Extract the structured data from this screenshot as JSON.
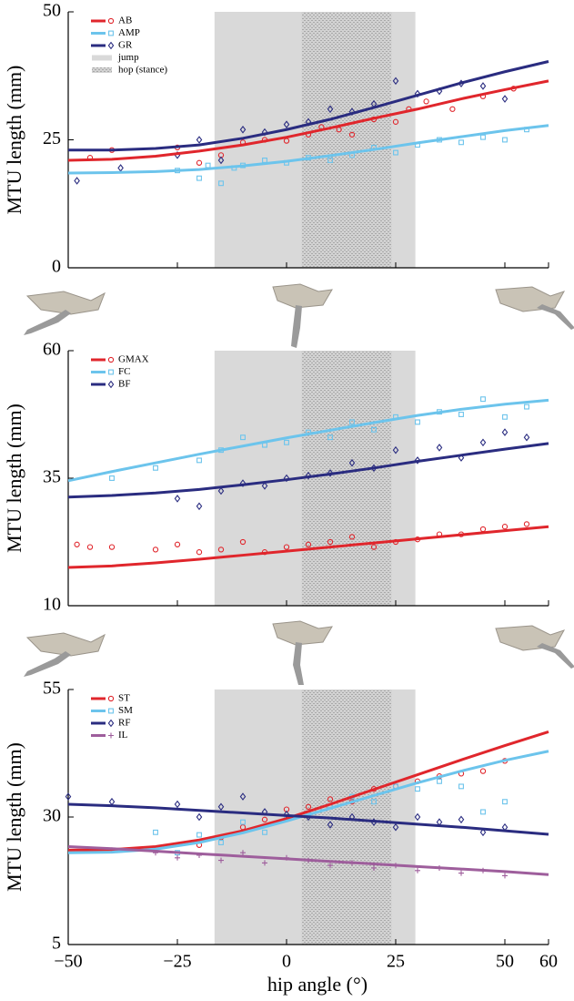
{
  "chart_data": [
    {
      "type": "line",
      "ylabel": "MTU length (mm)",
      "xlim": [
        -50,
        60
      ],
      "xticks": [
        -50,
        -25,
        0,
        25,
        50,
        60
      ],
      "ylim": [
        0,
        50
      ],
      "yticks": [
        0,
        25,
        50
      ],
      "regions": [
        {
          "name": "jump",
          "range": [
            -16.5,
            29.5
          ],
          "style": "solid"
        },
        {
          "name": "hop (stance)",
          "range": [
            3.5,
            24
          ],
          "style": "hatch"
        }
      ],
      "series": [
        {
          "name": "AB",
          "color": "#e0262c",
          "marker": "circle",
          "x": [
            -50,
            -40,
            -30,
            -20,
            -10,
            0,
            10,
            20,
            30,
            40,
            50,
            60
          ],
          "values": [
            21,
            21.2,
            21.8,
            22.8,
            24,
            25.5,
            27.3,
            29.2,
            31,
            33,
            34.8,
            36.5
          ],
          "scatter_x": [
            -45,
            -40,
            -25,
            -20,
            -15,
            -10,
            -5,
            0,
            5,
            8,
            12,
            15,
            20,
            25,
            28,
            32,
            38,
            45,
            52
          ],
          "scatter_values": [
            21.5,
            23,
            23.5,
            20.5,
            22,
            24.5,
            25,
            24.8,
            26,
            27.5,
            27,
            26,
            29,
            28.5,
            31,
            32.5,
            31,
            33.5,
            35
          ]
        },
        {
          "name": "AMP",
          "color": "#6cc4ec",
          "marker": "square",
          "x": [
            -50,
            -40,
            -30,
            -20,
            -10,
            0,
            10,
            20,
            30,
            40,
            50,
            60
          ],
          "values": [
            18.5,
            18.6,
            18.8,
            19.2,
            19.9,
            20.8,
            21.9,
            23.1,
            24.4,
            25.6,
            26.8,
            27.8
          ],
          "scatter_x": [
            -25,
            -20,
            -18,
            -15,
            -12,
            -10,
            -5,
            0,
            5,
            10,
            15,
            20,
            25,
            30,
            35,
            40,
            45,
            50,
            55
          ],
          "scatter_values": [
            19,
            17.5,
            20,
            16.5,
            19.5,
            20,
            21,
            20.5,
            21.5,
            21,
            22,
            23.5,
            22.5,
            24,
            25,
            24.5,
            25.5,
            25,
            27
          ]
        },
        {
          "name": "GR",
          "color": "#2a2c80",
          "marker": "diamond",
          "x": [
            -50,
            -40,
            -30,
            -20,
            -10,
            0,
            10,
            20,
            30,
            40,
            50,
            60
          ],
          "values": [
            23,
            23,
            23.3,
            24,
            25.3,
            27,
            29,
            31.3,
            33.7,
            36.1,
            38.3,
            40.3
          ],
          "scatter_x": [
            -48,
            -38,
            -25,
            -20,
            -15,
            -10,
            -5,
            0,
            5,
            10,
            15,
            20,
            25,
            30,
            35,
            40,
            45,
            50
          ],
          "scatter_values": [
            17,
            19.5,
            22,
            25,
            21,
            27,
            26.5,
            28,
            28.5,
            31,
            30.5,
            32,
            36.5,
            34,
            34.5,
            36,
            35.5,
            33
          ]
        }
      ]
    },
    {
      "type": "line",
      "ylabel": "MTU length (mm)",
      "xlim": [
        -50,
        60
      ],
      "xticks": [
        -50,
        -25,
        0,
        25,
        50,
        60
      ],
      "ylim": [
        10,
        60
      ],
      "yticks": [
        10,
        35,
        60
      ],
      "regions": [
        {
          "range": [
            -16.5,
            29.5
          ],
          "style": "solid"
        },
        {
          "range": [
            3.5,
            24
          ],
          "style": "hatch"
        }
      ],
      "series": [
        {
          "name": "GMAX",
          "color": "#e0262c",
          "marker": "circle",
          "x": [
            -50,
            -40,
            -30,
            -20,
            -10,
            0,
            10,
            20,
            30,
            40,
            50,
            60
          ],
          "values": [
            17.5,
            17.8,
            18.4,
            19.1,
            19.9,
            20.7,
            21.5,
            22.3,
            23.1,
            23.9,
            24.7,
            25.5
          ],
          "scatter_x": [
            -48,
            -45,
            -40,
            -30,
            -25,
            -20,
            -15,
            -10,
            -5,
            0,
            5,
            10,
            15,
            20,
            25,
            30,
            35,
            40,
            45,
            50,
            55
          ],
          "scatter_values": [
            22,
            21.5,
            21.5,
            21,
            22,
            20.5,
            21,
            22.5,
            20.5,
            21.5,
            22,
            22.5,
            23.5,
            21.5,
            22.5,
            23,
            24,
            24,
            25,
            25.5,
            26
          ]
        },
        {
          "name": "FC",
          "color": "#6cc4ec",
          "marker": "square",
          "x": [
            -50,
            -40,
            -30,
            -20,
            -10,
            0,
            10,
            20,
            30,
            40,
            50,
            60
          ],
          "values": [
            34.5,
            36.3,
            38,
            39.7,
            41.3,
            42.9,
            44.4,
            45.9,
            47.3,
            48.5,
            49.5,
            50.3
          ],
          "scatter_x": [
            -40,
            -30,
            -20,
            -15,
            -10,
            -5,
            0,
            5,
            10,
            15,
            20,
            25,
            30,
            35,
            40,
            45,
            50,
            55
          ],
          "scatter_values": [
            35,
            37,
            38.5,
            40.5,
            43,
            41.5,
            42,
            44,
            43,
            46,
            44.5,
            47,
            46,
            48,
            47.5,
            50.5,
            47,
            49
          ]
        },
        {
          "name": "BF",
          "color": "#2a2c80",
          "marker": "diamond",
          "x": [
            -50,
            -40,
            -30,
            -20,
            -10,
            0,
            10,
            20,
            30,
            40,
            50,
            60
          ],
          "values": [
            31.3,
            31.6,
            32.1,
            32.8,
            33.7,
            34.7,
            35.8,
            37,
            38.3,
            39.5,
            40.7,
            41.8
          ],
          "scatter_x": [
            -25,
            -20,
            -15,
            -10,
            -5,
            0,
            5,
            10,
            15,
            20,
            25,
            30,
            35,
            40,
            45,
            50,
            55
          ],
          "scatter_values": [
            31,
            29.5,
            32.5,
            34,
            33.5,
            35,
            35.5,
            36,
            38,
            37,
            40.5,
            38.5,
            41,
            39,
            42,
            44,
            43
          ]
        }
      ]
    },
    {
      "type": "line",
      "ylabel": "MTU length (mm)",
      "xlabel": "hip angle (°)",
      "xlim": [
        -50,
        60
      ],
      "xticks": [
        {
          "value": -50,
          "label": "−50"
        },
        {
          "value": -25,
          "label": "−25"
        },
        0,
        25,
        50,
        60
      ],
      "ylim": [
        5,
        55
      ],
      "yticks": [
        5,
        30,
        55
      ],
      "regions": [
        {
          "range": [
            -16.5,
            29.5
          ],
          "style": "solid"
        },
        {
          "range": [
            3.5,
            24
          ],
          "style": "hatch"
        }
      ],
      "series": [
        {
          "name": "ST",
          "color": "#e0262c",
          "marker": "circle",
          "x": [
            -50,
            -40,
            -30,
            -20,
            -10,
            0,
            10,
            20,
            30,
            40,
            50,
            60
          ],
          "values": [
            23.5,
            23.6,
            24.2,
            25.5,
            27.3,
            29.7,
            32.5,
            35.4,
            38.3,
            41.2,
            44,
            46.7
          ],
          "scatter_x": [
            -20,
            -15,
            -10,
            -5,
            0,
            5,
            10,
            15,
            20,
            25,
            30,
            35,
            40,
            45,
            50
          ],
          "scatter_values": [
            24.5,
            26,
            28,
            29.5,
            31.5,
            32,
            33.5,
            33,
            35.5,
            36,
            37,
            38,
            38.5,
            39,
            41
          ]
        },
        {
          "name": "SM",
          "color": "#6cc4ec",
          "marker": "square",
          "x": [
            -50,
            -40,
            -30,
            -20,
            -10,
            0,
            10,
            20,
            30,
            40,
            50,
            60
          ],
          "values": [
            23,
            23.1,
            23.7,
            25,
            26.9,
            29.2,
            31.7,
            34.2,
            36.7,
            39,
            41.1,
            42.9
          ],
          "scatter_x": [
            -30,
            -25,
            -20,
            -15,
            -10,
            -5,
            0,
            5,
            10,
            15,
            20,
            25,
            30,
            35,
            40,
            45,
            50
          ],
          "scatter_values": [
            27,
            23,
            26.5,
            25,
            29,
            27,
            30,
            30.5,
            32,
            34,
            33,
            36,
            35.5,
            37,
            36,
            31,
            33
          ]
        },
        {
          "name": "RF",
          "color": "#2a2c80",
          "marker": "diamond",
          "x": [
            -50,
            -40,
            -30,
            -20,
            -10,
            0,
            10,
            20,
            30,
            40,
            50,
            60
          ],
          "values": [
            32.5,
            32.2,
            31.8,
            31.3,
            30.8,
            30.3,
            29.8,
            29.2,
            28.6,
            28,
            27.3,
            26.6
          ],
          "scatter_x": [
            -50,
            -40,
            -25,
            -20,
            -15,
            -10,
            -5,
            0,
            5,
            10,
            15,
            20,
            25,
            30,
            35,
            40,
            45,
            50
          ],
          "scatter_values": [
            34,
            33,
            32.5,
            30,
            32,
            34,
            31,
            30.5,
            30,
            28.5,
            30,
            29,
            28,
            30,
            29,
            29.5,
            27,
            28
          ]
        },
        {
          "name": "IL",
          "color": "#9e5e9c",
          "marker": "plus",
          "x": [
            -50,
            -40,
            -30,
            -20,
            -10,
            0,
            10,
            20,
            30,
            40,
            50,
            60
          ],
          "values": [
            24.2,
            23.8,
            23.3,
            22.8,
            22.3,
            21.8,
            21.3,
            20.8,
            20.3,
            19.8,
            19.3,
            18.7
          ],
          "scatter_x": [
            -40,
            -30,
            -25,
            -20,
            -15,
            -10,
            -5,
            0,
            5,
            10,
            15,
            20,
            25,
            30,
            35,
            40,
            45,
            50
          ],
          "scatter_values": [
            23.5,
            23,
            22,
            22.5,
            21.5,
            23,
            21,
            22,
            21.5,
            20.5,
            21,
            20,
            20.5,
            19.5,
            20,
            19,
            19.5,
            18.5
          ]
        }
      ]
    }
  ]
}
